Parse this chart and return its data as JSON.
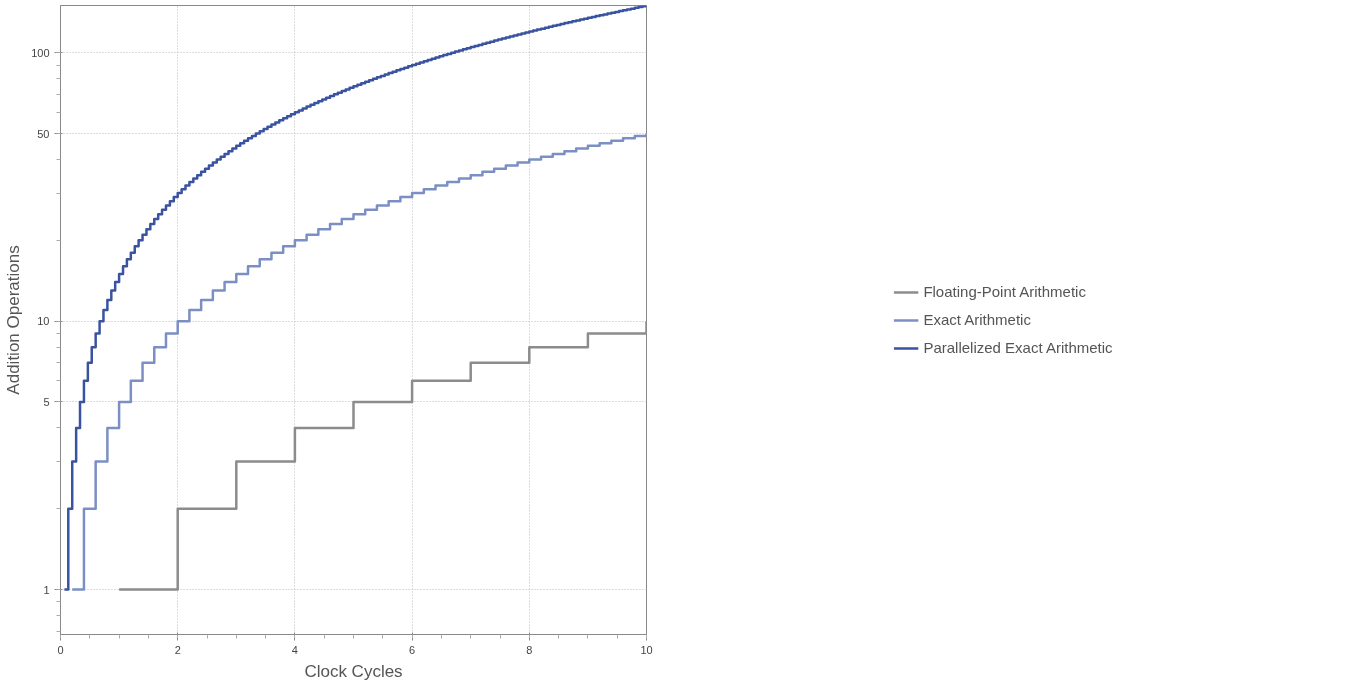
{
  "chart_data": {
    "type": "step",
    "xlabel": "Clock Cycles",
    "ylabel": "Addition Operations",
    "xlim": [
      0,
      10
    ],
    "ylim": [
      0.68,
      150
    ],
    "xticks": [
      0,
      2,
      4,
      6,
      8,
      10
    ],
    "yticks": [
      1,
      5,
      10,
      50,
      100
    ],
    "log": "y",
    "grid": true,
    "legend": "right",
    "series": [
      {
        "name": "Floating-Point Arithmetic",
        "color": "#8c8c8c",
        "x": [
          1,
          2,
          3,
          4,
          5,
          6,
          7,
          8,
          9,
          10
        ],
        "values": [
          1,
          2,
          3,
          4,
          5,
          6,
          7,
          8,
          9,
          10
        ]
      },
      {
        "name": "Exact Arithmetic",
        "color": "#7b8fc4",
        "x": [
          0.2,
          0.4,
          0.6,
          0.8,
          1,
          1.2,
          1.4,
          1.6,
          1.8,
          2,
          2.2,
          2.4,
          2.6,
          2.8,
          3,
          3.2,
          3.4,
          3.6,
          3.8,
          4,
          4.2,
          4.4,
          4.6,
          4.8,
          5,
          5.2,
          5.4,
          5.6,
          5.8,
          6,
          6.2,
          6.4,
          6.6,
          6.8,
          7,
          7.2,
          7.4,
          7.6,
          7.8,
          8,
          8.2,
          8.4,
          8.6,
          8.8,
          9,
          9.2,
          9.4,
          9.6,
          9.8,
          10
        ],
        "values": [
          1,
          2,
          3,
          4,
          5,
          6,
          7,
          8,
          9,
          10,
          11,
          12,
          13,
          14,
          15,
          16,
          17,
          18,
          19,
          20,
          21,
          22,
          23,
          24,
          25,
          26,
          27,
          28,
          29,
          30,
          31,
          32,
          33,
          34,
          35,
          36,
          37,
          38,
          39,
          40,
          41,
          42,
          43,
          44,
          45,
          46,
          47,
          48,
          49,
          50
        ]
      },
      {
        "name": "Parallelized Exact Arithmetic",
        "color": "#3a53a0",
        "x": [
          0.067,
          0.133,
          0.2,
          0.267,
          0.333,
          0.4,
          0.467,
          0.533,
          0.6,
          0.667,
          0.733,
          0.8,
          0.867,
          0.933,
          1,
          1.067,
          1.133,
          1.2,
          1.267,
          1.333,
          1.4,
          1.467,
          1.533,
          1.6,
          1.667,
          1.733,
          1.8,
          1.867,
          1.933,
          2,
          2.067,
          2.133,
          2.2,
          2.267,
          2.333,
          2.4,
          2.467,
          2.533,
          2.6,
          2.667,
          2.733,
          2.8,
          2.867,
          2.933,
          3,
          3.067,
          3.133,
          3.2,
          3.267,
          3.333,
          3.4,
          3.467,
          3.533,
          3.6,
          3.667,
          3.733,
          3.8,
          3.867,
          3.933,
          4,
          4.067,
          4.133,
          4.2,
          4.267,
          4.333,
          4.4,
          4.467,
          4.533,
          4.6,
          4.667,
          4.733,
          4.8,
          4.867,
          4.933,
          5,
          5.067,
          5.133,
          5.2,
          5.267,
          5.333,
          5.4,
          5.467,
          5.533,
          5.6,
          5.667,
          5.733,
          5.8,
          5.867,
          5.933,
          6,
          6.067,
          6.133,
          6.2,
          6.267,
          6.333,
          6.4,
          6.467,
          6.533,
          6.6,
          6.667,
          6.733,
          6.8,
          6.867,
          6.933,
          7,
          7.067,
          7.133,
          7.2,
          7.267,
          7.333,
          7.4,
          7.467,
          7.533,
          7.6,
          7.667,
          7.733,
          7.8,
          7.867,
          7.933,
          8,
          8.067,
          8.133,
          8.2,
          8.267,
          8.333,
          8.4,
          8.467,
          8.533,
          8.6,
          8.667,
          8.733,
          8.8,
          8.867,
          8.933,
          9,
          9.067,
          9.133,
          9.2,
          9.267,
          9.333,
          9.4,
          9.467,
          9.533,
          9.6,
          9.667,
          9.733,
          9.8,
          9.867,
          9.933,
          10
        ],
        "values": [
          1,
          2,
          3,
          4,
          5,
          6,
          7,
          8,
          9,
          10,
          11,
          12,
          13,
          14,
          15,
          16,
          17,
          18,
          19,
          20,
          21,
          22,
          23,
          24,
          25,
          26,
          27,
          28,
          29,
          30,
          31,
          32,
          33,
          34,
          35,
          36,
          37,
          38,
          39,
          40,
          41,
          42,
          43,
          44,
          45,
          46,
          47,
          48,
          49,
          50,
          51,
          52,
          53,
          54,
          55,
          56,
          57,
          58,
          59,
          60,
          61,
          62,
          63,
          64,
          65,
          66,
          67,
          68,
          69,
          70,
          71,
          72,
          73,
          74,
          75,
          76,
          77,
          78,
          79,
          80,
          81,
          82,
          83,
          84,
          85,
          86,
          87,
          88,
          89,
          90,
          91,
          92,
          93,
          94,
          95,
          96,
          97,
          98,
          99,
          100,
          101,
          102,
          103,
          104,
          105,
          106,
          107,
          108,
          109,
          110,
          111,
          112,
          113,
          114,
          115,
          116,
          117,
          118,
          119,
          120,
          121,
          122,
          123,
          124,
          125,
          126,
          127,
          128,
          129,
          130,
          131,
          132,
          133,
          134,
          135,
          136,
          137,
          138,
          139,
          140,
          141,
          142,
          143,
          144,
          145,
          146,
          147,
          148,
          149,
          150
        ]
      }
    ]
  }
}
